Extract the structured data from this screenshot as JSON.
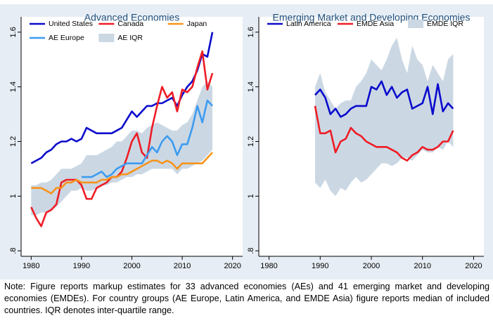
{
  "chart_data": [
    {
      "type": "line",
      "title": "Advanced Economies",
      "x": [
        1980,
        1981,
        1982,
        1983,
        1984,
        1985,
        1986,
        1987,
        1988,
        1989,
        1990,
        1991,
        1992,
        1993,
        1994,
        1995,
        1996,
        1997,
        1998,
        1999,
        2000,
        2001,
        2002,
        2003,
        2004,
        2005,
        2006,
        2007,
        2008,
        2009,
        2010,
        2011,
        2012,
        2013,
        2014,
        2015,
        2016
      ],
      "xlim": [
        1978,
        2022
      ],
      "xticks": [
        1980,
        1990,
        2000,
        2010,
        2020
      ],
      "ylim": [
        0.78,
        1.62
      ],
      "yticks": [
        {
          "value": 0.8,
          "label": ".8"
        },
        1,
        1.2,
        1.4,
        1.6
      ],
      "series": [
        {
          "name": "AE IQR",
          "type": "band",
          "color": "#cbd8e4",
          "low": [
            0.93,
            0.93,
            0.94,
            0.94,
            0.95,
            0.96,
            0.98,
            1.0,
            1.02,
            1.02,
            1.03,
            1.02,
            1.02,
            1.03,
            1.04,
            1.04,
            1.05,
            1.05,
            1.06,
            1.07,
            1.07,
            1.08,
            1.08,
            1.09,
            1.1,
            1.1,
            1.1,
            1.1,
            1.1,
            1.08,
            1.1,
            1.1,
            1.11,
            1.12,
            1.13,
            1.15,
            1.17
          ],
          "high": [
            1.04,
            1.04,
            1.05,
            1.05,
            1.06,
            1.08,
            1.1,
            1.1,
            1.1,
            1.11,
            1.12,
            1.15,
            1.15,
            1.15,
            1.16,
            1.17,
            1.18,
            1.2,
            1.2,
            1.22,
            1.24,
            1.24,
            1.23,
            1.25,
            1.26,
            1.27,
            1.26,
            1.25,
            1.24,
            1.24,
            1.26,
            1.27,
            1.3,
            1.35,
            1.4,
            1.42,
            1.4
          ]
        },
        {
          "name": "United States",
          "color": "#0b0bcc",
          "values": [
            1.12,
            1.13,
            1.14,
            1.16,
            1.17,
            1.19,
            1.2,
            1.2,
            1.21,
            1.2,
            1.21,
            1.25,
            1.24,
            1.23,
            1.23,
            1.23,
            1.23,
            1.24,
            1.25,
            1.28,
            1.31,
            1.29,
            1.31,
            1.33,
            1.33,
            1.34,
            1.34,
            1.35,
            1.36,
            1.33,
            1.37,
            1.4,
            1.42,
            1.46,
            1.52,
            1.51,
            1.6
          ]
        },
        {
          "name": "Canada",
          "color": "#ee1c25",
          "values": [
            0.96,
            0.92,
            0.89,
            0.94,
            0.95,
            0.97,
            1.05,
            1.06,
            1.06,
            1.06,
            1.04,
            0.99,
            0.99,
            1.03,
            1.04,
            1.05,
            1.07,
            1.07,
            1.09,
            1.14,
            1.2,
            1.23,
            1.16,
            1.14,
            1.25,
            1.33,
            1.4,
            1.36,
            1.38,
            1.31,
            1.39,
            1.38,
            1.4,
            1.47,
            1.53,
            1.39,
            1.45
          ]
        },
        {
          "name": "Japan",
          "color": "#f7941d",
          "values": [
            1.03,
            1.03,
            1.03,
            1.02,
            1.01,
            1.03,
            1.03,
            1.05,
            1.05,
            1.06,
            1.05,
            1.05,
            1.05,
            1.05,
            1.06,
            1.06,
            1.07,
            1.07,
            1.08,
            1.08,
            1.09,
            1.1,
            1.11,
            1.12,
            1.13,
            1.13,
            1.12,
            1.13,
            1.12,
            1.1,
            1.12,
            1.12,
            1.12,
            1.12,
            1.12,
            1.14,
            1.16
          ]
        },
        {
          "name": "AE Europe",
          "color": "#3d9bf0",
          "values": [
            null,
            null,
            null,
            null,
            null,
            null,
            null,
            null,
            null,
            null,
            1.07,
            1.07,
            1.07,
            1.08,
            1.09,
            1.07,
            1.08,
            1.1,
            1.11,
            1.12,
            1.12,
            1.12,
            1.12,
            1.15,
            1.18,
            1.16,
            1.2,
            1.22,
            1.2,
            1.15,
            1.19,
            1.19,
            1.25,
            1.33,
            1.27,
            1.35,
            1.33
          ]
        }
      ]
    },
    {
      "type": "line",
      "title": "Emerging Market and Developing Economies",
      "x": [
        1989,
        1990,
        1991,
        1992,
        1993,
        1994,
        1995,
        1996,
        1997,
        1998,
        1999,
        2000,
        2001,
        2002,
        2003,
        2004,
        2005,
        2006,
        2007,
        2008,
        2009,
        2010,
        2011,
        2012,
        2013,
        2014,
        2015,
        2016
      ],
      "xlim": [
        1978,
        2022
      ],
      "xticks": [
        1980,
        1990,
        2000,
        2010,
        2020
      ],
      "ylim": [
        0.78,
        1.62
      ],
      "yticks": [
        {
          "value": 0.8,
          "label": ".8"
        },
        1,
        1.2,
        1.4,
        1.6
      ],
      "series": [
        {
          "name": "EMDE IQR",
          "type": "band",
          "color": "#cbd8e4",
          "low": [
            1.05,
            1.03,
            1.06,
            1.02,
            1.0,
            1.03,
            1.02,
            1.05,
            1.07,
            1.05,
            1.06,
            1.08,
            1.1,
            1.12,
            1.12,
            1.11,
            1.12,
            1.14,
            1.14,
            1.13,
            1.15,
            1.17,
            1.16,
            1.16,
            1.18,
            1.17,
            1.2,
            1.18
          ],
          "high": [
            1.4,
            1.45,
            1.38,
            1.35,
            1.32,
            1.34,
            1.35,
            1.35,
            1.4,
            1.42,
            1.45,
            1.5,
            1.48,
            1.46,
            1.5,
            1.55,
            1.58,
            1.5,
            1.45,
            1.55,
            1.5,
            1.48,
            1.42,
            1.48,
            1.45,
            1.42,
            1.5,
            1.52
          ]
        },
        {
          "name": "Latin America",
          "color": "#0b0bcc",
          "values": [
            1.37,
            1.39,
            1.36,
            1.3,
            1.32,
            1.29,
            1.3,
            1.32,
            1.33,
            1.33,
            1.33,
            1.4,
            1.39,
            1.42,
            1.37,
            1.4,
            1.36,
            1.38,
            1.39,
            1.32,
            1.33,
            1.34,
            1.4,
            1.3,
            1.41,
            1.31,
            1.34,
            1.32
          ]
        },
        {
          "name": "EMDE Asia",
          "color": "#ee1c25",
          "values": [
            1.33,
            1.23,
            1.23,
            1.24,
            1.16,
            1.2,
            1.21,
            1.25,
            1.23,
            1.22,
            1.2,
            1.19,
            1.18,
            1.18,
            1.18,
            1.17,
            1.16,
            1.14,
            1.13,
            1.15,
            1.16,
            1.18,
            1.17,
            1.17,
            1.18,
            1.2,
            1.2,
            1.24
          ]
        }
      ]
    }
  ],
  "note": "Note: Figure reports markup estimates for 33 advanced economies (AEs) and 41 emerging market and developing economies (EMDEs). For country groups (AE Europe, Latin America, and EMDE Asia) figure reports median of included countries. IQR denotes inter-quartile range."
}
